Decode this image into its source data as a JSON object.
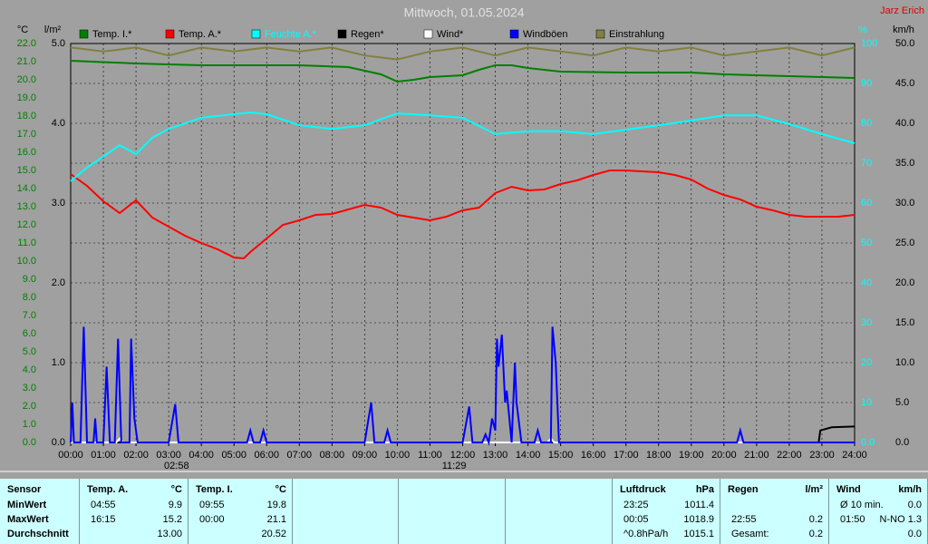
{
  "chart_data": {
    "type": "line",
    "title": "Mittwoch, 01.05.2024",
    "author": "Jarz Erich",
    "axis_titles": {
      "y": "°C",
      "y_rain": "l/m²",
      "y2": "%",
      "y3": "km/h"
    },
    "xlim": [
      0,
      24
    ],
    "xticks": [
      {
        "value": 0,
        "label": "00:00"
      },
      {
        "value": 1,
        "label": "01:00"
      },
      {
        "value": 2,
        "label": "02:00"
      },
      {
        "value": 3,
        "label": "03:00"
      },
      {
        "value": 4,
        "label": "04:00"
      },
      {
        "value": 5,
        "label": "05:00"
      },
      {
        "value": 6,
        "label": "06:00"
      },
      {
        "value": 7,
        "label": "07:00"
      },
      {
        "value": 8,
        "label": "08:00"
      },
      {
        "value": 9,
        "label": "09:00"
      },
      {
        "value": 10,
        "label": "10:00"
      },
      {
        "value": 11,
        "label": "11:00"
      },
      {
        "value": 12,
        "label": "12:00"
      },
      {
        "value": 13,
        "label": "13:00"
      },
      {
        "value": 14,
        "label": "14:00"
      },
      {
        "value": 15,
        "label": "15:00"
      },
      {
        "value": 16,
        "label": "16:00"
      },
      {
        "value": 17,
        "label": "17:00"
      },
      {
        "value": 18,
        "label": "18:00"
      },
      {
        "value": 19,
        "label": "19:00"
      },
      {
        "value": 20,
        "label": "20:00"
      },
      {
        "value": 21,
        "label": "21:00"
      },
      {
        "value": 22,
        "label": "22:00"
      },
      {
        "value": 23,
        "label": "23:00"
      },
      {
        "value": 24,
        "label": "24:00"
      }
    ],
    "ylim": [
      0,
      22
    ],
    "yticks": [
      {
        "value": 0,
        "label": "0.0"
      },
      {
        "value": 1,
        "label": "1.0"
      },
      {
        "value": 2,
        "label": "2.0"
      },
      {
        "value": 3,
        "label": "3.0"
      },
      {
        "value": 4,
        "label": "4.0"
      },
      {
        "value": 5,
        "label": "5.0"
      },
      {
        "value": 6,
        "label": "6.0"
      },
      {
        "value": 7,
        "label": "7.0"
      },
      {
        "value": 8,
        "label": "8.0"
      },
      {
        "value": 9,
        "label": "9.0"
      },
      {
        "value": 10,
        "label": "10.0"
      },
      {
        "value": 11,
        "label": "11.0"
      },
      {
        "value": 12,
        "label": "12.0"
      },
      {
        "value": 13,
        "label": "13.0"
      },
      {
        "value": 14,
        "label": "14.0"
      },
      {
        "value": 15,
        "label": "15.0"
      },
      {
        "value": 16,
        "label": "16.0"
      },
      {
        "value": 17,
        "label": "17.0"
      },
      {
        "value": 18,
        "label": "18.0"
      },
      {
        "value": 19,
        "label": "19.0"
      },
      {
        "value": 20,
        "label": "20.0"
      },
      {
        "value": 21,
        "label": "21.0"
      },
      {
        "value": 22,
        "label": "22.0"
      }
    ],
    "y_rainlim": [
      0,
      5
    ],
    "y_rainticks": [
      {
        "value": 0,
        "label": "0.0"
      },
      {
        "value": 1,
        "label": "1.0"
      },
      {
        "value": 2,
        "label": "2.0"
      },
      {
        "value": 3,
        "label": "3.0"
      },
      {
        "value": 4,
        "label": "4.0"
      },
      {
        "value": 5,
        "label": "5.0"
      }
    ],
    "y2lim": [
      0,
      100
    ],
    "y2ticks": [
      {
        "value": 0,
        "label": "0.0"
      },
      10,
      20,
      30,
      40,
      50,
      60,
      70,
      80,
      90,
      100
    ],
    "y3lim": [
      0,
      50
    ],
    "y3ticks": [
      {
        "value": 0,
        "label": "0.0"
      },
      {
        "value": 5,
        "label": "5.0"
      },
      {
        "value": 10,
        "label": "10.0"
      },
      {
        "value": 15,
        "label": "15.0"
      },
      {
        "value": 20,
        "label": "20.0"
      },
      {
        "value": 25,
        "label": "25.0"
      },
      {
        "value": 30,
        "label": "30.0"
      },
      {
        "value": 35,
        "label": "35.0"
      },
      {
        "value": 40,
        "label": "40.0"
      },
      {
        "value": 45,
        "label": "45.0"
      },
      {
        "value": 50,
        "label": "50.0"
      }
    ],
    "grid": true,
    "series": [
      {
        "name": "Temp. I.*",
        "color": "#008000",
        "axis": "y",
        "x": [
          0,
          2,
          4,
          7,
          8.5,
          9.5,
          10,
          10.5,
          11,
          12,
          12.5,
          13,
          13.5,
          14,
          15,
          17,
          19,
          20,
          21,
          22,
          24
        ],
        "values": [
          21.05,
          20.9,
          20.8,
          20.8,
          20.7,
          20.3,
          19.9,
          20.0,
          20.15,
          20.25,
          20.55,
          20.8,
          20.8,
          20.65,
          20.45,
          20.4,
          20.4,
          20.3,
          20.25,
          20.2,
          20.1
        ]
      },
      {
        "name": "Temp. A.*",
        "color": "#ff0000",
        "axis": "y",
        "x": [
          0,
          0.5,
          1,
          1.5,
          2,
          2.5,
          3,
          3.5,
          4,
          4.5,
          5,
          5.3,
          5.5,
          6,
          6.5,
          7,
          7.5,
          8,
          8.5,
          9,
          9.5,
          10,
          10.5,
          11,
          11.5,
          12,
          12.5,
          13,
          13.5,
          14,
          14.5,
          15,
          15.5,
          16,
          16.5,
          17,
          17.5,
          18,
          18.5,
          19,
          19.5,
          20,
          20.5,
          21,
          21.5,
          22,
          22.5,
          23,
          23.5,
          24
        ],
        "values": [
          14.8,
          14.15,
          13.3,
          12.65,
          13.35,
          12.4,
          11.9,
          11.4,
          11.0,
          10.65,
          10.2,
          10.15,
          10.5,
          11.25,
          12.0,
          12.25,
          12.55,
          12.6,
          12.85,
          13.1,
          12.95,
          12.55,
          12.4,
          12.25,
          12.45,
          12.8,
          12.95,
          13.75,
          14.1,
          13.9,
          13.95,
          14.25,
          14.45,
          14.75,
          15.0,
          15.0,
          14.95,
          14.9,
          14.75,
          14.5,
          14.0,
          13.65,
          13.4,
          13.0,
          12.8,
          12.55,
          12.45,
          12.45,
          12.45,
          12.55
        ]
      },
      {
        "name": "Feuchte A.*",
        "color": "#00ffff",
        "axis": "y2",
        "x": [
          0,
          0.5,
          1.5,
          2,
          2.5,
          3,
          4,
          5,
          5.5,
          6,
          7,
          8,
          9,
          10,
          11,
          12,
          13,
          14,
          15,
          16,
          17,
          18,
          19,
          20,
          21,
          22,
          23,
          24
        ],
        "values": [
          65.5,
          68.9,
          74.5,
          72.3,
          76.4,
          78.6,
          81.4,
          82.3,
          82.7,
          82.3,
          79.5,
          78.6,
          79.5,
          82.5,
          82,
          81.4,
          77.3,
          78,
          78,
          77.3,
          78.4,
          79.5,
          80.7,
          82,
          82,
          79.8,
          77.3,
          75
        ]
      },
      {
        "name": "Regen*",
        "color": "#000000",
        "axis": "y_rain",
        "x": [
          0,
          22.9,
          22.95,
          23.3,
          24
        ],
        "values": [
          0,
          0,
          0.15,
          0.19,
          0.2
        ]
      },
      {
        "name": "Wind*",
        "color": "#ffffff",
        "axis": "y3",
        "x": [
          0,
          1.4,
          1.5,
          1.6,
          14.6,
          14.7,
          14.8,
          24
        ],
        "values": [
          0,
          0,
          0.5,
          0,
          0,
          0.5,
          0,
          0
        ]
      },
      {
        "name": "Windböen",
        "color": "#0000ff",
        "axis": "y3",
        "x": [
          0,
          0.05,
          0.1,
          0.3,
          0.4,
          0.5,
          0.7,
          0.75,
          0.8,
          1.0,
          1.1,
          1.2,
          1.35,
          1.45,
          1.55,
          1.8,
          1.85,
          1.95,
          2.05,
          3.0,
          3.2,
          3.3,
          5.4,
          5.5,
          5.6,
          5.8,
          5.9,
          6.0,
          9.0,
          9.1,
          9.2,
          9.3,
          9.6,
          9.7,
          9.8,
          12.0,
          12.2,
          12.3,
          12.6,
          12.7,
          12.8,
          12.9,
          13.0,
          13.05,
          13.1,
          13.2,
          13.3,
          13.35,
          13.5,
          13.6,
          13.65,
          13.8,
          14.2,
          14.3,
          14.4,
          14.7,
          14.75,
          14.85,
          14.95,
          20.4,
          20.5,
          20.6,
          24
        ],
        "values": [
          0,
          5,
          0,
          0,
          14.5,
          0,
          0,
          3,
          0,
          0,
          9.5,
          0,
          0,
          13,
          0,
          0,
          13,
          3,
          0,
          0,
          4.8,
          0,
          0,
          1.5,
          0,
          0,
          1.5,
          0,
          0,
          2.5,
          5,
          0,
          0,
          1.5,
          0,
          0,
          4.5,
          0,
          0,
          1,
          0,
          3,
          1.5,
          13,
          9.5,
          13.5,
          5,
          6.5,
          0,
          10,
          5,
          0,
          0,
          1.5,
          0,
          0,
          14.5,
          10,
          0,
          0,
          1.5,
          0,
          0
        ]
      },
      {
        "name": "Einstrahlung",
        "color": "#808040",
        "axis": "y2",
        "x": [
          0,
          1,
          2,
          3,
          4,
          5,
          6,
          7,
          8,
          9,
          10,
          11,
          12,
          13,
          14,
          15,
          16,
          17,
          18,
          19,
          20,
          21,
          22,
          23,
          24
        ],
        "values": [
          99,
          98,
          99,
          97,
          99,
          98,
          99,
          98,
          99,
          97,
          96,
          98,
          99,
          97,
          99,
          98,
          97,
          99,
          98,
          99,
          97,
          98,
          99,
          97,
          99
        ]
      }
    ],
    "annotations": [
      {
        "x": 2.97,
        "text": "02:58"
      },
      {
        "x": 11.48,
        "text": "11:29"
      }
    ]
  },
  "table": {
    "columns": [
      {
        "header": [
          "Sensor"
        ],
        "rows": [
          {
            "time": "MinWert"
          },
          {
            "time": "MaxWert"
          },
          {
            "time": "Durchschnitt"
          }
        ]
      },
      {
        "header": [
          "Temp. A.",
          "°C"
        ],
        "rows": [
          {
            "time": "04:55",
            "value": "9.9"
          },
          {
            "time": "16:15",
            "value": "15.2"
          },
          {
            "value": "13.00"
          }
        ]
      },
      {
        "header": [
          "Temp. I.",
          "°C"
        ],
        "rows": [
          {
            "time": "09:55",
            "value": "19.8"
          },
          {
            "time": "00:00",
            "value": "21.1"
          },
          {
            "value": "20.52"
          }
        ]
      },
      {
        "header": [
          "Luftdruck",
          "hPa"
        ],
        "rows": [
          {
            "time": "23:25",
            "value": "1011.4"
          },
          {
            "time": "00:05",
            "value": "1018.9"
          },
          {
            "time": "^0.8hPa/h",
            "value": "1015.1"
          }
        ]
      },
      {
        "header": [
          "Regen",
          "l/m²"
        ],
        "rows": [
          null,
          {
            "time": "22:55",
            "value": "0.2"
          },
          {
            "time": "Gesamt:",
            "value": "0.2"
          }
        ]
      },
      {
        "header": [
          "Wind",
          "km/h"
        ],
        "rows": [
          {
            "time": "Ø 10 min.",
            "value": "0.0"
          },
          {
            "time": "01:50",
            "value": "N-NO 1.3"
          },
          {
            "value": "0.0"
          }
        ]
      }
    ]
  }
}
